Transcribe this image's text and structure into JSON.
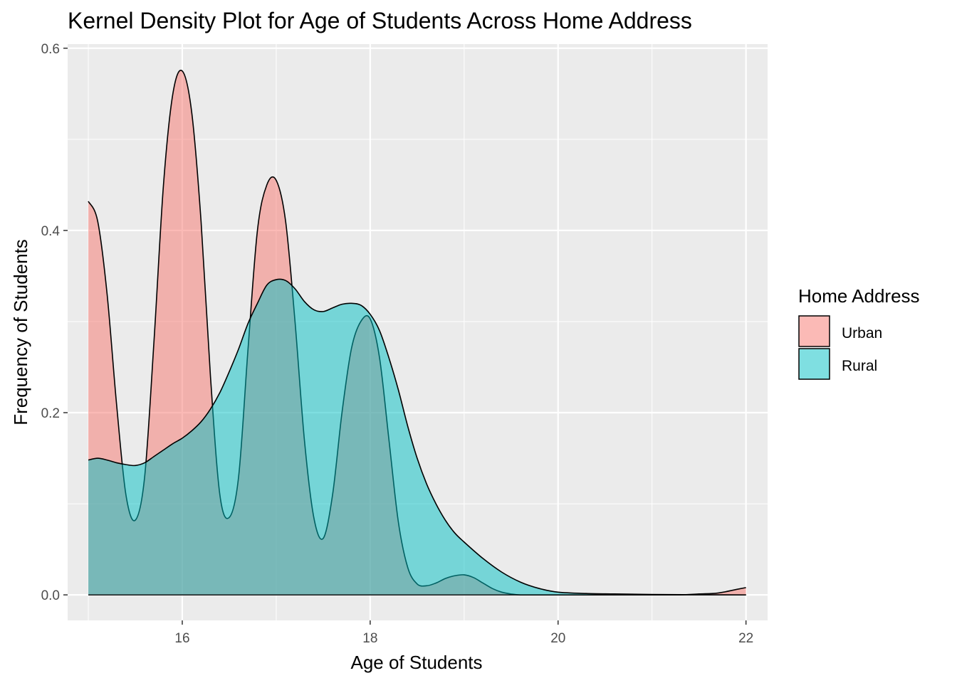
{
  "chart_data": {
    "type": "area",
    "title": "Kernel Density Plot for Age of Students Across Home Address",
    "xlabel": "Age of Students",
    "ylabel": "Frequency of Students",
    "xlim": [
      14.78,
      22.23
    ],
    "ylim": [
      -0.028,
      0.6045
    ],
    "x_ticks": [
      16,
      18,
      20,
      22
    ],
    "y_ticks": [
      0.0,
      0.2,
      0.4,
      0.6
    ],
    "x_tick_labels": [
      "16",
      "18",
      "20",
      "22"
    ],
    "y_tick_labels": [
      "0.0",
      "0.2",
      "0.4",
      "0.6"
    ],
    "grid": true,
    "legend": {
      "title": "Home Address",
      "placement": "right",
      "entries": [
        {
          "label": "Urban",
          "color": "#F8766D"
        },
        {
          "label": "Rural",
          "color": "#00BFC4"
        }
      ]
    },
    "series": [
      {
        "name": "Urban",
        "color": "#F8766D",
        "x": [
          15.0,
          15.1,
          15.2,
          15.3,
          15.4,
          15.5,
          15.6,
          15.7,
          15.8,
          15.9,
          16.0,
          16.1,
          16.2,
          16.3,
          16.4,
          16.5,
          16.6,
          16.7,
          16.8,
          16.9,
          17.0,
          17.1,
          17.2,
          17.3,
          17.4,
          17.5,
          17.6,
          17.7,
          17.8,
          17.9,
          18.0,
          18.1,
          18.2,
          18.3,
          18.4,
          18.5,
          18.6,
          18.7,
          18.8,
          18.9,
          19.0,
          19.1,
          19.2,
          19.3,
          19.4,
          19.5,
          19.6,
          19.8,
          20.0,
          20.5,
          21.0,
          21.3,
          21.5,
          21.7,
          21.9,
          22.0
        ],
        "y": [
          0.432,
          0.41,
          0.33,
          0.21,
          0.11,
          0.082,
          0.13,
          0.28,
          0.45,
          0.55,
          0.575,
          0.53,
          0.41,
          0.24,
          0.11,
          0.085,
          0.13,
          0.27,
          0.4,
          0.45,
          0.455,
          0.41,
          0.3,
          0.17,
          0.085,
          0.062,
          0.11,
          0.2,
          0.27,
          0.3,
          0.303,
          0.26,
          0.17,
          0.08,
          0.03,
          0.012,
          0.01,
          0.013,
          0.018,
          0.021,
          0.022,
          0.019,
          0.013,
          0.007,
          0.003,
          0.001,
          0.0,
          0.0,
          0.0,
          0.0,
          0.0,
          0.0,
          0.001,
          0.002,
          0.006,
          0.008
        ]
      },
      {
        "name": "Rural",
        "color": "#00BFC4",
        "x": [
          15.0,
          15.1,
          15.2,
          15.3,
          15.4,
          15.5,
          15.6,
          15.7,
          15.8,
          15.9,
          16.0,
          16.1,
          16.2,
          16.3,
          16.4,
          16.5,
          16.6,
          16.7,
          16.8,
          16.9,
          17.0,
          17.1,
          17.2,
          17.3,
          17.4,
          17.5,
          17.6,
          17.7,
          17.8,
          17.9,
          18.0,
          18.1,
          18.2,
          18.3,
          18.4,
          18.5,
          18.6,
          18.7,
          18.8,
          18.9,
          19.0,
          19.2,
          19.4,
          19.6,
          19.8,
          20.0,
          20.3,
          20.6,
          21.0,
          21.5,
          22.0
        ],
        "y": [
          0.148,
          0.15,
          0.148,
          0.145,
          0.143,
          0.142,
          0.145,
          0.152,
          0.159,
          0.166,
          0.172,
          0.18,
          0.19,
          0.204,
          0.222,
          0.245,
          0.27,
          0.298,
          0.32,
          0.34,
          0.346,
          0.345,
          0.336,
          0.322,
          0.313,
          0.311,
          0.315,
          0.319,
          0.32,
          0.318,
          0.308,
          0.29,
          0.26,
          0.225,
          0.185,
          0.15,
          0.122,
          0.1,
          0.082,
          0.068,
          0.058,
          0.04,
          0.025,
          0.014,
          0.007,
          0.003,
          0.0015,
          0.001,
          0.0005,
          0.0002,
          0.0
        ]
      }
    ]
  }
}
